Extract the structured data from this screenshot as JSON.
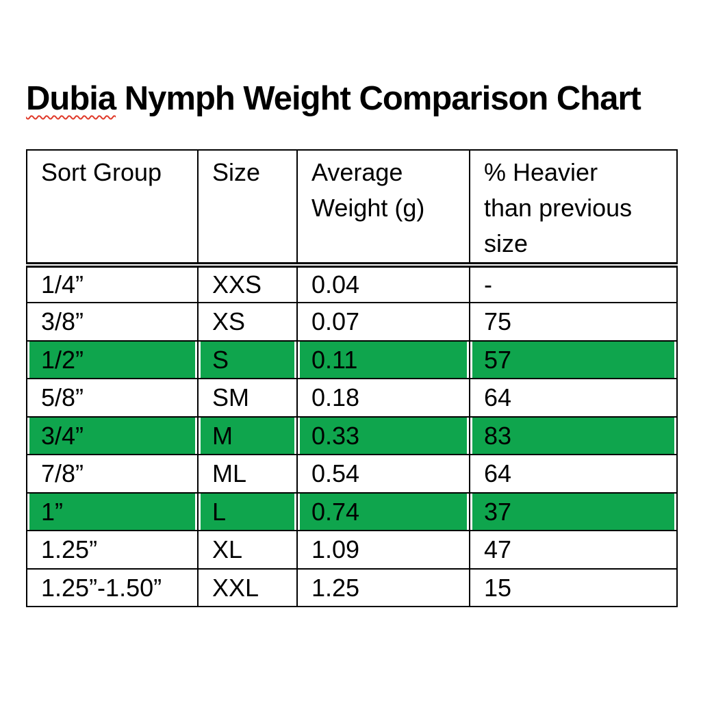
{
  "document": {
    "title": {
      "full": "Dubia Nymph Weight Comparison Chart",
      "misspelled_word": "Dubia",
      "rest": " Nymph Weight Comparison Chart",
      "spellcheck_underline_color": "#e03a2a"
    },
    "background_color": "#ffffff",
    "text_color": "#000000"
  },
  "table": {
    "columns": [
      "Sort Group",
      "Size",
      "Average Weight (g)",
      "% Heavier than previous size"
    ],
    "rows": [
      {
        "cells": [
          "1/4”",
          "XXS",
          "0.04",
          "-"
        ],
        "highlighted": false
      },
      {
        "cells": [
          "3/8”",
          "XS",
          "0.07",
          "75"
        ],
        "highlighted": false
      },
      {
        "cells": [
          "1/2”",
          "S",
          "0.11",
          "57"
        ],
        "highlighted": true
      },
      {
        "cells": [
          "5/8”",
          "SM",
          "0.18",
          "64"
        ],
        "highlighted": false
      },
      {
        "cells": [
          "3/4”",
          "M",
          "0.33",
          "83"
        ],
        "highlighted": true
      },
      {
        "cells": [
          "7/8”",
          "ML",
          "0.54",
          "64"
        ],
        "highlighted": false
      },
      {
        "cells": [
          "1”",
          "L",
          "0.74",
          "37"
        ],
        "highlighted": true
      },
      {
        "cells": [
          "1.25”",
          "XL",
          "1.09",
          "47"
        ],
        "highlighted": false
      },
      {
        "cells": [
          "1.25”-1.50”",
          "XXL",
          "1.25",
          "15"
        ],
        "highlighted": false
      }
    ],
    "highlight_color": "#0fa54d",
    "border_color": "#000000"
  },
  "chart_data": {
    "type": "table",
    "title": "Dubia Nymph Weight Comparison Chart",
    "columns": [
      "Sort Group",
      "Size",
      "Average Weight (g)",
      "% Heavier than previous size"
    ],
    "rows": [
      [
        "1/4”",
        "XXS",
        "0.04",
        "-"
      ],
      [
        "3/8”",
        "XS",
        "0.07",
        "75"
      ],
      [
        "1/2”",
        "S",
        "0.11",
        "57"
      ],
      [
        "5/8”",
        "SM",
        "0.18",
        "64"
      ],
      [
        "3/4”",
        "M",
        "0.33",
        "83"
      ],
      [
        "7/8”",
        "ML",
        "0.54",
        "64"
      ],
      [
        "1”",
        "L",
        "0.74",
        "37"
      ],
      [
        "1.25”",
        "XL",
        "1.09",
        "47"
      ],
      [
        "1.25”-1.50”",
        "XXL",
        "1.25",
        "15"
      ]
    ],
    "highlighted_row_indices": [
      2,
      4,
      6
    ]
  }
}
